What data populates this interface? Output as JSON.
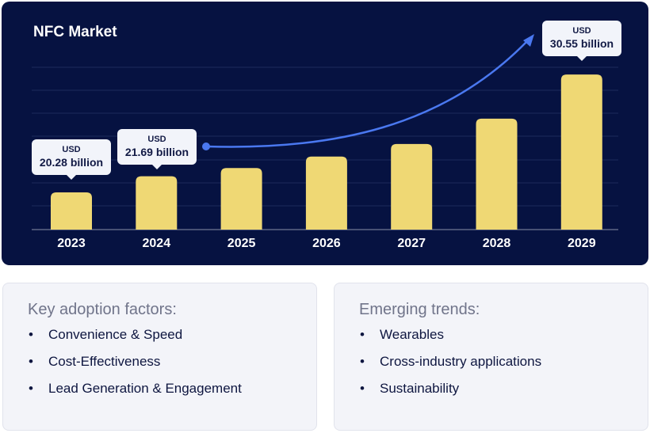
{
  "chart_data": {
    "type": "bar",
    "title": "NFC Market",
    "categories": [
      "2023",
      "2024",
      "2025",
      "2026",
      "2027",
      "2028",
      "2029"
    ],
    "values": [
      20.28,
      21.69,
      22.4,
      23.4,
      24.5,
      26.7,
      30.55
    ],
    "data_labels": [
      {
        "category": "2023",
        "unit": "USD",
        "text": "20.28 billion"
      },
      {
        "category": "2024",
        "unit": "USD",
        "text": "21.69 billion"
      },
      {
        "category": "2029",
        "unit": "USD",
        "text": "30.55 billion"
      }
    ],
    "grid": true,
    "colors": {
      "background": "#061241",
      "bar": "#efd874",
      "arrow": "#4a78f0",
      "grid": "#1c2a5c"
    }
  },
  "adoption": {
    "heading": "Key adoption factors:",
    "items": [
      "Convenience & Speed",
      "Cost-Effectiveness",
      "Lead Generation & Engagement"
    ]
  },
  "trends": {
    "heading": "Emerging trends:",
    "items": [
      "Wearables",
      "Cross-industry applications",
      "Sustainability"
    ]
  }
}
